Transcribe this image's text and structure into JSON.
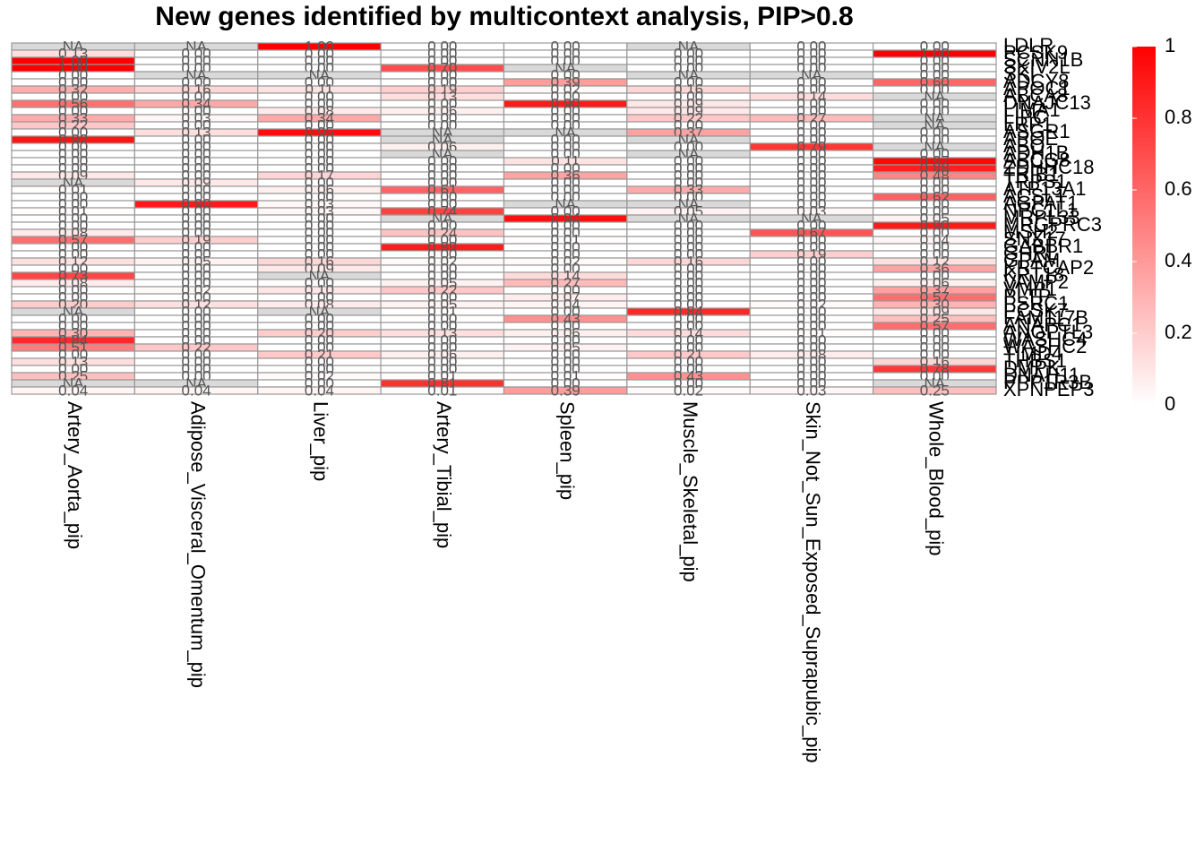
{
  "chart_data": {
    "type": "heatmap",
    "title": "New genes identified by multicontext analysis, PIP>0.8",
    "x": [
      "Artery_Aorta_pip",
      "Adipose_Visceral_Omentum_pip",
      "Liver_pip",
      "Artery_Tibial_pip",
      "Spleen_pip",
      "Muscle_Skeletal_pip",
      "Skin_Not_Sun_Exposed_Suprapubic_pip",
      "Whole_Blood_pip"
    ],
    "y": [
      "LDLR",
      "PCSK9",
      "SCNN1B",
      "SKIV2L",
      "SKI",
      "ADCY8",
      "APOC1",
      "ABCA8",
      "DNAJC13",
      "LIMA1",
      "LIPC",
      "LRP1",
      "ASGR1",
      "APOE",
      "ABO",
      "ADH1B",
      "ABCG8",
      "ZDHHC18",
      "TRIB1",
      "TRPS1",
      "ATP13A1",
      "ACSL1",
      "AGPAT1",
      "NPC1L1",
      "MRPL33",
      "MRGPRC3",
      "MSH2",
      "SNX17",
      "GABBR1",
      "GHRL",
      "GPAM",
      "KRTCAP2",
      "KRT18",
      "VAMP2",
      "VMP1",
      "PLTP",
      "PSRC1",
      "PCSK7",
      "FAM117B",
      "ANAPC1",
      "ANGPTL3",
      "WASHC4",
      "WASHC2",
      "TIMD4",
      "THBS1",
      "DMPK",
      "DNAH11",
      "PPP1R3B",
      "XPNPEP3"
    ],
    "values": [
      [
        null,
        null,
        1.0,
        0.0,
        0.0,
        null,
        0.0,
        0.0
      ],
      [
        0.13,
        0.0,
        0.0,
        0.0,
        0.0,
        0.0,
        0.0,
        1.0
      ],
      [
        1.0,
        0.0,
        0.0,
        0.0,
        0.0,
        0.0,
        0.0,
        0.0
      ],
      [
        1.0,
        0.0,
        0.0,
        0.7,
        null,
        0.0,
        0.0,
        0.0
      ],
      [
        0.0,
        null,
        null,
        0.0,
        0.0,
        null,
        null,
        0.0
      ],
      [
        0.0,
        0.0,
        0.0,
        0.0,
        0.39,
        0.0,
        0.0,
        0.6
      ],
      [
        0.32,
        0.16,
        0.11,
        0.19,
        0.02,
        0.16,
        0.0,
        0.0
      ],
      [
        0.0,
        0.0,
        0.0,
        0.13,
        0.0,
        0.0,
        0.14,
        null
      ],
      [
        0.56,
        0.34,
        0.0,
        0.0,
        0.9,
        0.09,
        0.0,
        0.0
      ],
      [
        0.0,
        0.0,
        0.08,
        0.06,
        0.0,
        0.09,
        0.0,
        0.0
      ],
      [
        0.33,
        0.03,
        0.34,
        0.0,
        0.0,
        0.22,
        0.27,
        null
      ],
      [
        0.22,
        0.0,
        0.0,
        0.0,
        0.0,
        0.0,
        0.0,
        null
      ],
      [
        0.0,
        0.13,
        0.95,
        null,
        null,
        0.37,
        0.0,
        0.0
      ],
      [
        0.92,
        0.0,
        0.0,
        null,
        0.0,
        null,
        0.0,
        0.0
      ],
      [
        0.0,
        0.0,
        0.0,
        0.06,
        0.0,
        0.0,
        0.79,
        null
      ],
      [
        0.0,
        0.0,
        0.0,
        null,
        0.0,
        null,
        0.0,
        0.0
      ],
      [
        0.0,
        0.0,
        0.0,
        0.0,
        0.11,
        0.0,
        0.0,
        0.97
      ],
      [
        0.0,
        0.0,
        0.0,
        0.0,
        0.0,
        0.0,
        0.0,
        0.88
      ],
      [
        0.09,
        0.0,
        0.17,
        0.0,
        0.36,
        0.0,
        0.0,
        0.48
      ],
      [
        null,
        0.09,
        0.0,
        0.0,
        0.0,
        0.0,
        0.0,
        0.0
      ],
      [
        0.01,
        0.0,
        0.06,
        0.61,
        0.0,
        0.33,
        0.0,
        0.0
      ],
      [
        0.0,
        0.0,
        0.0,
        0.0,
        0.0,
        0.0,
        0.0,
        0.62
      ],
      [
        0.0,
        0.9,
        0.03,
        0.0,
        null,
        null,
        0.0,
        0.0
      ],
      [
        0.01,
        0.0,
        0.03,
        0.74,
        0.0,
        0.05,
        0.03,
        0.0
      ],
      [
        0.0,
        0.0,
        0.0,
        null,
        0.94,
        null,
        null,
        0.05
      ],
      [
        0.0,
        0.0,
        0.0,
        0.0,
        0.0,
        0.0,
        0.0,
        0.9
      ],
      [
        0.08,
        0.0,
        0.0,
        0.24,
        0.0,
        0.0,
        0.67,
        0.0
      ],
      [
        0.57,
        0.19,
        0.0,
        0.0,
        0.01,
        0.0,
        0.0,
        0.04
      ],
      [
        0.0,
        0.0,
        0.0,
        0.89,
        0.0,
        0.0,
        0.0,
        0.0
      ],
      [
        0.0,
        0.0,
        0.0,
        0.0,
        0.0,
        0.0,
        0.19,
        0.0
      ],
      [
        0.12,
        0.05,
        0.16,
        0.02,
        0.02,
        0.16,
        0.0,
        0.12
      ],
      [
        0.0,
        0.0,
        0.09,
        0.0,
        0.0,
        0.0,
        0.0,
        0.36
      ],
      [
        0.73,
        0.0,
        null,
        0.0,
        0.14,
        0.0,
        0.0,
        0.0
      ],
      [
        0.08,
        0.0,
        0.0,
        0.05,
        0.27,
        0.0,
        0.0,
        0.06
      ],
      [
        0.0,
        0.02,
        0.1,
        0.22,
        0.0,
        0.0,
        0.0,
        0.37
      ],
      [
        0.0,
        0.0,
        0.0,
        0.0,
        0.07,
        0.0,
        0.0,
        0.57
      ],
      [
        0.2,
        0.12,
        0.08,
        0.05,
        0.04,
        0.0,
        0.02,
        0.3
      ],
      [
        null,
        0.0,
        null,
        0.01,
        0.0,
        0.84,
        0.0,
        0.09
      ],
      [
        0.0,
        0.0,
        0.0,
        0.0,
        0.43,
        0.0,
        0.0,
        0.25
      ],
      [
        0.0,
        0.0,
        0.0,
        0.0,
        0.0,
        0.0,
        0.0,
        0.57
      ],
      [
        0.3,
        0.0,
        0.2,
        0.13,
        0.06,
        0.14,
        0.01,
        0.0
      ],
      [
        0.84,
        0.0,
        0.0,
        0.0,
        0.0,
        0.0,
        0.0,
        0.0
      ],
      [
        0.51,
        0.22,
        0.0,
        0.0,
        0.05,
        0.0,
        0.0,
        0.0
      ],
      [
        0.0,
        0.0,
        0.21,
        0.06,
        0.0,
        0.21,
        0.08,
        0.0
      ],
      [
        0.13,
        0.0,
        0.0,
        0.0,
        0.0,
        0.0,
        0.0,
        0.16
      ],
      [
        0.0,
        0.0,
        0.0,
        0.0,
        0.0,
        0.0,
        0.0,
        0.78
      ],
      [
        0.25,
        0.0,
        0.02,
        0.01,
        0.01,
        0.43,
        0.0,
        0.0
      ],
      [
        null,
        null,
        0.0,
        0.81,
        0.0,
        0.0,
        0.0,
        null
      ],
      [
        0.04,
        0.04,
        0.04,
        0.01,
        0.39,
        0.02,
        0.03,
        0.25
      ]
    ],
    "value_labels": [
      [
        "NA",
        "NA",
        "1.00",
        "0.00",
        "0.00",
        "NA",
        "0.00",
        "0.00"
      ],
      [
        "0.13",
        "0.00",
        "0.00",
        "0.00",
        "0.00",
        "0.00",
        "0.00",
        "1.00"
      ],
      [
        "1.00",
        "0.00",
        "0.00",
        "0.00",
        "0.00",
        "0.00",
        "0.00",
        "0.00"
      ],
      [
        "1.00",
        "0.00",
        "0.00",
        "0.70",
        "NA",
        "0.00",
        "0.00",
        "0.00"
      ],
      [
        "0.00",
        "NA",
        "NA",
        "0.00",
        "0.00",
        "NA",
        "NA",
        "0.00"
      ],
      [
        "0.00",
        "0.00",
        "0.00",
        "0.00",
        "0.39",
        "0.00",
        "0.00",
        "0.60"
      ],
      [
        "0.32",
        "0.16",
        "0.11",
        "0.19",
        "0.02",
        "0.16",
        "0.00",
        "0.00"
      ],
      [
        "0.00",
        "0.00",
        "0.00",
        "0.13",
        "0.00",
        "0.00",
        "0.14",
        "NA"
      ],
      [
        "0.56",
        "0.34",
        "0.00",
        "0.00",
        "0.90",
        "0.09",
        "0.00",
        "0.00"
      ],
      [
        "0.00",
        "0.00",
        "0.08",
        "0.06",
        "0.00",
        "0.09",
        "0.00",
        "0.00"
      ],
      [
        "0.33",
        "0.03",
        "0.34",
        "0.00",
        "0.00",
        "0.22",
        "0.27",
        "NA"
      ],
      [
        "0.22",
        "0.00",
        "0.00",
        "0.00",
        "0.00",
        "0.00",
        "0.00",
        "NA"
      ],
      [
        "0.00",
        "0.13",
        "0.95",
        "NA",
        "NA",
        "0.37",
        "0.00",
        "0.00"
      ],
      [
        "0.92",
        "0.00",
        "0.00",
        "NA",
        "0.00",
        "NA",
        "0.00",
        "0.00"
      ],
      [
        "0.00",
        "0.00",
        "0.00",
        "0.06",
        "0.00",
        "0.00",
        "0.79",
        "NA"
      ],
      [
        "0.00",
        "0.00",
        "0.00",
        "NA",
        "0.00",
        "NA",
        "0.00",
        "0.00"
      ],
      [
        "0.00",
        "0.00",
        "0.00",
        "0.00",
        "0.11",
        "0.00",
        "0.00",
        "0.97"
      ],
      [
        "0.00",
        "0.00",
        "0.00",
        "0.00",
        "0.00",
        "0.00",
        "0.00",
        "0.88"
      ],
      [
        "0.09",
        "0.00",
        "0.17",
        "0.00",
        "0.36",
        "0.00",
        "0.00",
        "0.48"
      ],
      [
        "NA",
        "0.09",
        "0.00",
        "0.00",
        "0.00",
        "0.00",
        "0.00",
        "0.00"
      ],
      [
        "0.01",
        "0.00",
        "0.06",
        "0.61",
        "0.00",
        "0.33",
        "0.00",
        "0.00"
      ],
      [
        "0.00",
        "0.00",
        "0.00",
        "0.00",
        "0.00",
        "0.00",
        "0.00",
        "0.62"
      ],
      [
        "0.00",
        "0.90",
        "0.03",
        "0.00",
        "NA",
        "NA",
        "0.00",
        "0.00"
      ],
      [
        "0.01",
        "0.00",
        "0.03",
        "0.74",
        "0.00",
        "0.05",
        "0.03",
        "0.00"
      ],
      [
        "0.00",
        "0.00",
        "0.00",
        "NA",
        "0.94",
        "NA",
        "NA",
        "0.05"
      ],
      [
        "0.00",
        "0.00",
        "0.00",
        "0.00",
        "0.00",
        "0.00",
        "0.00",
        "0.90"
      ],
      [
        "0.08",
        "0.00",
        "0.00",
        "0.24",
        "0.00",
        "0.00",
        "0.67",
        "0.00"
      ],
      [
        "0.57",
        "0.19",
        "0.00",
        "0.00",
        "0.01",
        "0.00",
        "0.00",
        "0.04"
      ],
      [
        "0.00",
        "0.00",
        "0.00",
        "0.89",
        "0.00",
        "0.00",
        "0.00",
        "0.00"
      ],
      [
        "0.00",
        "0.00",
        "0.00",
        "0.00",
        "0.00",
        "0.00",
        "0.19",
        "0.00"
      ],
      [
        "0.12",
        "0.05",
        "0.16",
        "0.02",
        "0.02",
        "0.16",
        "0.00",
        "0.12"
      ],
      [
        "0.00",
        "0.00",
        "0.09",
        "0.00",
        "0.00",
        "0.00",
        "0.00",
        "0.36"
      ],
      [
        "0.73",
        "0.00",
        "NA",
        "0.00",
        "0.14",
        "0.00",
        "0.00",
        "0.00"
      ],
      [
        "0.08",
        "0.00",
        "0.00",
        "0.05",
        "0.27",
        "0.00",
        "0.00",
        "0.06"
      ],
      [
        "0.00",
        "0.02",
        "0.10",
        "0.22",
        "0.00",
        "0.00",
        "0.00",
        "0.37"
      ],
      [
        "0.00",
        "0.00",
        "0.00",
        "0.00",
        "0.07",
        "0.00",
        "0.00",
        "0.57"
      ],
      [
        "0.20",
        "0.12",
        "0.08",
        "0.05",
        "0.04",
        "0.00",
        "0.02",
        "0.30"
      ],
      [
        "NA",
        "0.00",
        "NA",
        "0.01",
        "0.00",
        "0.84",
        "0.00",
        "0.09"
      ],
      [
        "0.00",
        "0.00",
        "0.00",
        "0.00",
        "0.43",
        "0.00",
        "0.00",
        "0.25"
      ],
      [
        "0.00",
        "0.00",
        "0.00",
        "0.00",
        "0.00",
        "0.00",
        "0.00",
        "0.57"
      ],
      [
        "0.30",
        "0.00",
        "0.20",
        "0.13",
        "0.06",
        "0.14",
        "0.01",
        "0.00"
      ],
      [
        "0.84",
        "0.00",
        "0.00",
        "0.00",
        "0.00",
        "0.00",
        "0.00",
        "0.00"
      ],
      [
        "0.51",
        "0.22",
        "0.00",
        "0.00",
        "0.05",
        "0.00",
        "0.00",
        "0.00"
      ],
      [
        "0.00",
        "0.00",
        "0.21",
        "0.06",
        "0.00",
        "0.21",
        "0.08",
        "0.00"
      ],
      [
        "0.13",
        "0.00",
        "0.00",
        "0.00",
        "0.00",
        "0.00",
        "0.00",
        "0.16"
      ],
      [
        "0.00",
        "0.00",
        "0.00",
        "0.00",
        "0.00",
        "0.00",
        "0.00",
        "0.78"
      ],
      [
        "0.25",
        "0.00",
        "0.02",
        "0.01",
        "0.01",
        "0.43",
        "0.00",
        "0.00"
      ],
      [
        "NA",
        "NA",
        "0.00",
        "0.81",
        "0.00",
        "0.00",
        "0.00",
        "NA"
      ],
      [
        "0.04",
        "0.04",
        "0.04",
        "0.01",
        "0.39",
        "0.02",
        "0.03",
        "0.25"
      ]
    ],
    "zlim": [
      0,
      1
    ],
    "zticks": [
      0,
      0.2,
      0.4,
      0.6,
      0.8,
      1
    ],
    "low_color": "#ffffff",
    "high_color": "#ff0000",
    "na_color": "#d9d9d9"
  }
}
